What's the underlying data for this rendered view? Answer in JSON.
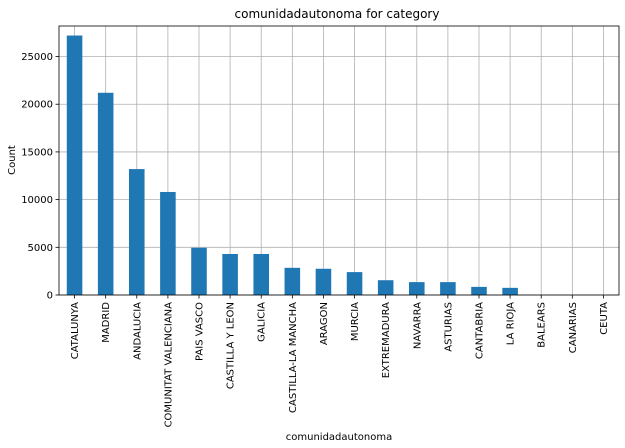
{
  "chart_data": {
    "type": "bar",
    "title": "comunidadautonoma for category",
    "xlabel": "comunidadautonoma",
    "ylabel": "Count",
    "categories": [
      "CATALUNYA",
      "MADRID",
      "ANDALUCIA",
      "COMUNITAT VALENCIANA",
      "PAIS VASCO",
      "CASTILLA Y LEON",
      "GALICIA",
      "CASTILLA-LA MANCHA",
      "ARAGON",
      "MURCIA",
      "EXTREMADURA",
      "NAVARRA",
      "ASTURIAS",
      "CANTABRIA",
      "LA RIOJA",
      "BALEARS",
      "CANARIAS",
      "CEUTA"
    ],
    "values": [
      27200,
      21200,
      13200,
      10800,
      4950,
      4300,
      4300,
      2850,
      2750,
      2400,
      1550,
      1350,
      1350,
      850,
      750,
      0,
      0,
      0
    ],
    "ylim": [
      0,
      28200
    ],
    "yticks": [
      0,
      5000,
      10000,
      15000,
      20000,
      25000
    ],
    "grid": true,
    "bar_color": "#1f77b4"
  }
}
